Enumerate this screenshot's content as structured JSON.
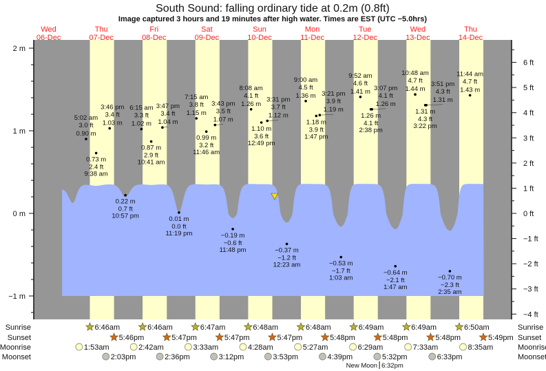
{
  "title": "South Sound: falling  ordinary tide at 0.2m (0.8ft)",
  "subtitle": "Image captured 3 hours and 19 minutes after high water. Times are EST (UTC −5.0hrs)",
  "colors": {
    "night": "#969696",
    "day": "#ffffcc",
    "water": "#a0b4ff",
    "day_label": "#ff2020",
    "sunrise": "#b4b43c",
    "sunset": "#d2691e",
    "moonrise": "#ffffc8",
    "moonset": "#c4c0b4",
    "marker": "#f0e020"
  },
  "chart_data": {
    "type": "area",
    "title": "South Sound: falling  ordinary tide at 0.2m (0.8ft)",
    "current": {
      "state": "falling",
      "height_m": 0.2,
      "height_ft": 0.8,
      "label": "3 hours and 19 minutes after high water"
    },
    "y_left": {
      "unit": "m",
      "ticks": [
        "2 m",
        "1 m",
        "0 m",
        "−1 m"
      ],
      "values": [
        2,
        1,
        0,
        -1
      ],
      "range": [
        -1.25,
        2.1
      ]
    },
    "y_right": {
      "unit": "ft",
      "ticks": [
        "6 ft",
        "5 ft",
        "4 ft",
        "3 ft",
        "2 ft",
        "1 ft",
        "0 ft",
        "−1 ft",
        "−2 ft",
        "−3 ft",
        "−4 ft"
      ],
      "values": [
        6,
        5,
        4,
        3,
        2,
        1,
        0,
        -1,
        -2,
        -3,
        -4
      ]
    },
    "days": [
      {
        "dow": "Wed",
        "date": "06-Dec",
        "day": 6
      },
      {
        "dow": "Thu",
        "date": "07-Dec",
        "day": 7
      },
      {
        "dow": "Fri",
        "date": "08-Dec",
        "day": 8
      },
      {
        "dow": "Sat",
        "date": "09-Dec",
        "day": 9
      },
      {
        "dow": "Sun",
        "date": "10-Dec",
        "day": 10
      },
      {
        "dow": "Mon",
        "date": "11-Dec",
        "day": 11
      },
      {
        "dow": "Tue",
        "date": "12-Dec",
        "day": 12
      },
      {
        "dow": "Wed",
        "date": "13-Dec",
        "day": 13
      },
      {
        "dow": "Thu",
        "date": "14-Dec",
        "day": 14
      }
    ],
    "tides": [
      {
        "day": 7,
        "time": "5:02 am",
        "m": "0.90 m",
        "ft": "3.0 ft",
        "value": 0.9,
        "type": "high"
      },
      {
        "day": 7,
        "time": "9:38 am",
        "m": "0.73 m",
        "ft": "2.4 ft",
        "value": 0.73,
        "type": "low"
      },
      {
        "day": 7,
        "time": "3:46 pm",
        "m": "1.03 m",
        "ft": "3.4 ft",
        "value": 1.03,
        "type": "high"
      },
      {
        "day": 7,
        "time": "10:57 pm",
        "m": "0.22 m",
        "ft": "0.7 ft",
        "value": 0.22,
        "type": "low"
      },
      {
        "day": 8,
        "time": "6:15 am",
        "m": "1.02 m",
        "ft": "3.3 ft",
        "value": 1.02,
        "type": "high"
      },
      {
        "day": 8,
        "time": "10:41 am",
        "m": "0.87 m",
        "ft": "2.9 ft",
        "value": 0.87,
        "type": "low"
      },
      {
        "day": 8,
        "time": "3:47 pm",
        "m": "1.04 m",
        "ft": "3.4 ft",
        "value": 1.04,
        "type": "high"
      },
      {
        "day": 8,
        "time": "11:19 pm",
        "m": "0.01 m",
        "ft": "0.0 ft",
        "value": 0.01,
        "type": "low"
      },
      {
        "day": 9,
        "time": "7:15 am",
        "m": "1.15 m",
        "ft": "3.8 ft",
        "value": 1.15,
        "type": "high"
      },
      {
        "day": 9,
        "time": "11:46 am",
        "m": "0.99 m",
        "ft": "3.2 ft",
        "value": 0.99,
        "type": "low"
      },
      {
        "day": 9,
        "time": "3:43 pm",
        "m": "1.07 m",
        "ft": "3.5 ft",
        "value": 1.07,
        "type": "high"
      },
      {
        "day": 9,
        "time": "11:48 pm",
        "m": "−0.19 m",
        "ft": "−0.6 ft",
        "value": -0.19,
        "type": "low"
      },
      {
        "day": 10,
        "time": "8:08 am",
        "m": "1.26 m",
        "ft": "4.1 ft",
        "value": 1.26,
        "type": "high"
      },
      {
        "day": 10,
        "time": "12:49 pm",
        "m": "1.10 m",
        "ft": "3.6 ft",
        "value": 1.1,
        "type": "low"
      },
      {
        "day": 10,
        "time": "3:31 pm",
        "m": "1.12 m",
        "ft": "3.7 ft",
        "value": 1.12,
        "type": "high"
      },
      {
        "day": 11,
        "time": "12:23 am",
        "m": "−0.37 m",
        "ft": "−1.2 ft",
        "value": -0.37,
        "type": "low"
      },
      {
        "day": 11,
        "time": "9:00 am",
        "m": "1.36 m",
        "ft": "4.5 ft",
        "value": 1.36,
        "type": "high"
      },
      {
        "day": 11,
        "time": "1:47 pm",
        "m": "1.18 m",
        "ft": "3.9 ft",
        "value": 1.18,
        "type": "low"
      },
      {
        "day": 11,
        "time": "3:21 pm",
        "m": "1.19 m",
        "ft": "3.9 ft",
        "value": 1.19,
        "type": "high"
      },
      {
        "day": 12,
        "time": "1:03 am",
        "m": "−0.53 m",
        "ft": "−1.7 ft",
        "value": -0.53,
        "type": "low"
      },
      {
        "day": 12,
        "time": "9:52 am",
        "m": "1.41 m",
        "ft": "4.6 ft",
        "value": 1.41,
        "type": "high"
      },
      {
        "day": 12,
        "time": "2:38 pm",
        "m": "1.26 m",
        "ft": "4.1 ft",
        "value": 1.26,
        "type": "low"
      },
      {
        "day": 12,
        "time": "3:07 pm",
        "m": "1.26 m",
        "ft": "4.1 ft",
        "value": 1.26,
        "type": "high"
      },
      {
        "day": 13,
        "time": "1:47 am",
        "m": "−0.64 m",
        "ft": "−2.1 ft",
        "value": -0.64,
        "type": "low"
      },
      {
        "day": 13,
        "time": "10:48 am",
        "m": "1.44 m",
        "ft": "4.7 ft",
        "value": 1.44,
        "type": "high"
      },
      {
        "day": 13,
        "time": "3:22 pm",
        "m": "1.31 m",
        "ft": "4.3 ft",
        "value": 1.31,
        "type": "low"
      },
      {
        "day": 13,
        "time": "3:51 pm",
        "m": "1.31 m",
        "ft": "4.3 ft",
        "value": 1.31,
        "type": "high"
      },
      {
        "day": 14,
        "time": "2:35 am",
        "m": "−0.70 m",
        "ft": "−2.3 ft",
        "value": -0.7,
        "type": "low"
      },
      {
        "day": 14,
        "time": "11:44 am",
        "m": "1.43 m",
        "ft": "4.7 ft",
        "value": 1.43,
        "type": "high"
      }
    ],
    "sun_moon": {
      "row_labels": [
        "Sunrise",
        "Sunset",
        "Moonrise",
        "Moonset"
      ],
      "sunrise": [
        {
          "day": 7,
          "time": "6:46am"
        },
        {
          "day": 8,
          "time": "6:46am"
        },
        {
          "day": 9,
          "time": "6:47am"
        },
        {
          "day": 10,
          "time": "6:48am"
        },
        {
          "day": 11,
          "time": "6:48am"
        },
        {
          "day": 12,
          "time": "6:49am"
        },
        {
          "day": 13,
          "time": "6:49am"
        },
        {
          "day": 14,
          "time": "6:50am"
        }
      ],
      "sunset": [
        {
          "day": 7,
          "time": "5:46pm"
        },
        {
          "day": 8,
          "time": "5:47pm"
        },
        {
          "day": 9,
          "time": "5:47pm"
        },
        {
          "day": 10,
          "time": "5:47pm"
        },
        {
          "day": 11,
          "time": "5:48pm"
        },
        {
          "day": 12,
          "time": "5:48pm"
        },
        {
          "day": 13,
          "time": "5:48pm"
        },
        {
          "day": 14,
          "time": "5:49pm"
        }
      ],
      "moonrise": [
        {
          "day": 7,
          "time": "1:53am"
        },
        {
          "day": 8,
          "time": "2:42am"
        },
        {
          "day": 9,
          "time": "3:33am"
        },
        {
          "day": 10,
          "time": "4:28am"
        },
        {
          "day": 11,
          "time": "5:27am"
        },
        {
          "day": 12,
          "time": "6:29am"
        },
        {
          "day": 13,
          "time": "7:33am"
        },
        {
          "day": 14,
          "time": "8:35am"
        }
      ],
      "moonset": [
        {
          "day": 7,
          "time": "2:03pm"
        },
        {
          "day": 8,
          "time": "2:36pm"
        },
        {
          "day": 9,
          "time": "3:12pm"
        },
        {
          "day": 10,
          "time": "3:53pm"
        },
        {
          "day": 11,
          "time": "4:39pm"
        },
        {
          "day": 12,
          "time": "5:32pm"
        },
        {
          "day": 13,
          "time": "6:33pm"
        }
      ],
      "moon_phase": {
        "label": "New Moon",
        "day": 12,
        "time": "6:32pm"
      }
    }
  }
}
